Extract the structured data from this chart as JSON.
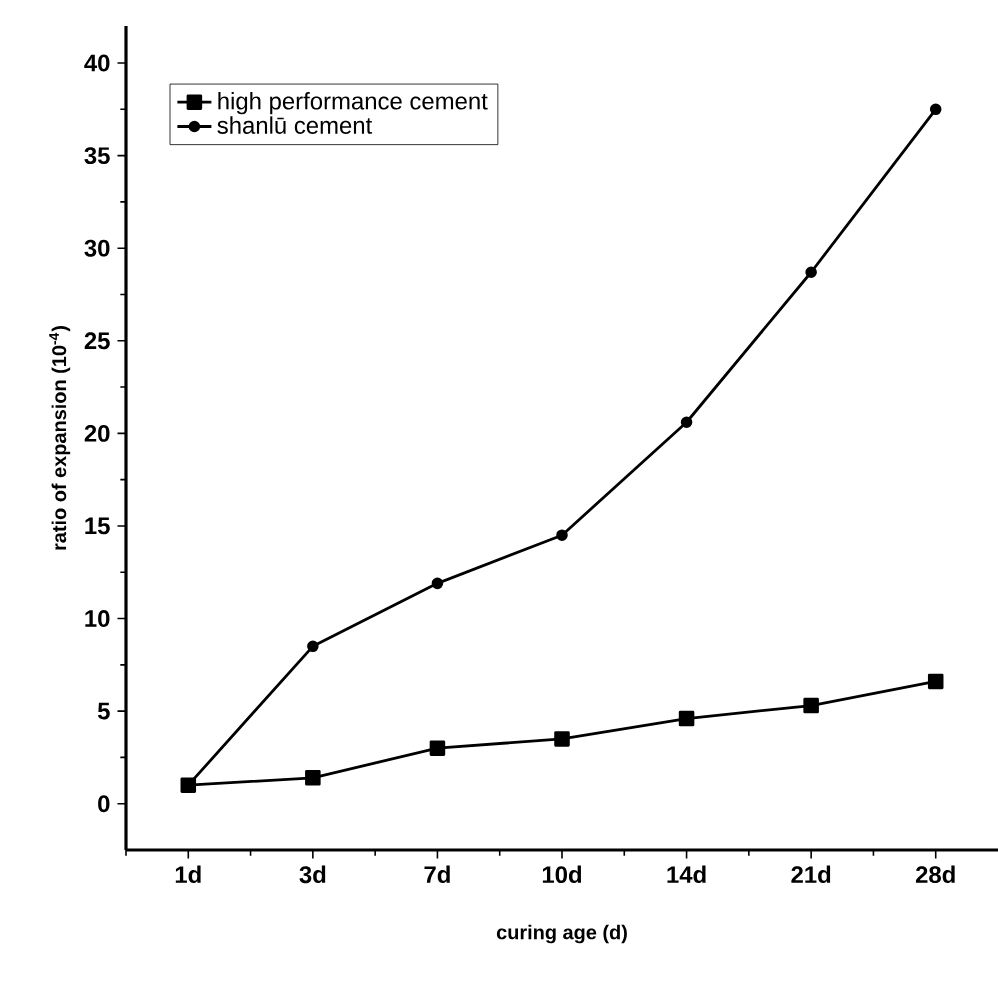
{
  "chart_data": {
    "type": "line",
    "xlabel": "curing age (d)",
    "ylabel": "ratio of expansion (10$^{-4}$)",
    "categories": [
      "1d",
      "3d",
      "7d",
      "10d",
      "14d",
      "21d",
      "28d"
    ],
    "series": [
      {
        "name": "high performance cement",
        "color": "#000000",
        "marker": "square",
        "values": [
          1.0,
          1.4,
          3.0,
          3.5,
          4.6,
          5.3,
          6.6
        ]
      },
      {
        "name": "shanlū cement",
        "color": "#000000",
        "marker": "circle",
        "values": [
          1.0,
          8.5,
          11.9,
          14.5,
          20.6,
          28.7,
          37.5
        ]
      }
    ],
    "ylim": [
      -2.5,
      42
    ],
    "yticks": [
      0,
      5,
      10,
      15,
      20,
      25,
      30,
      35,
      40
    ],
    "grid": false,
    "legend": "top left",
    "line_style": "solid"
  }
}
